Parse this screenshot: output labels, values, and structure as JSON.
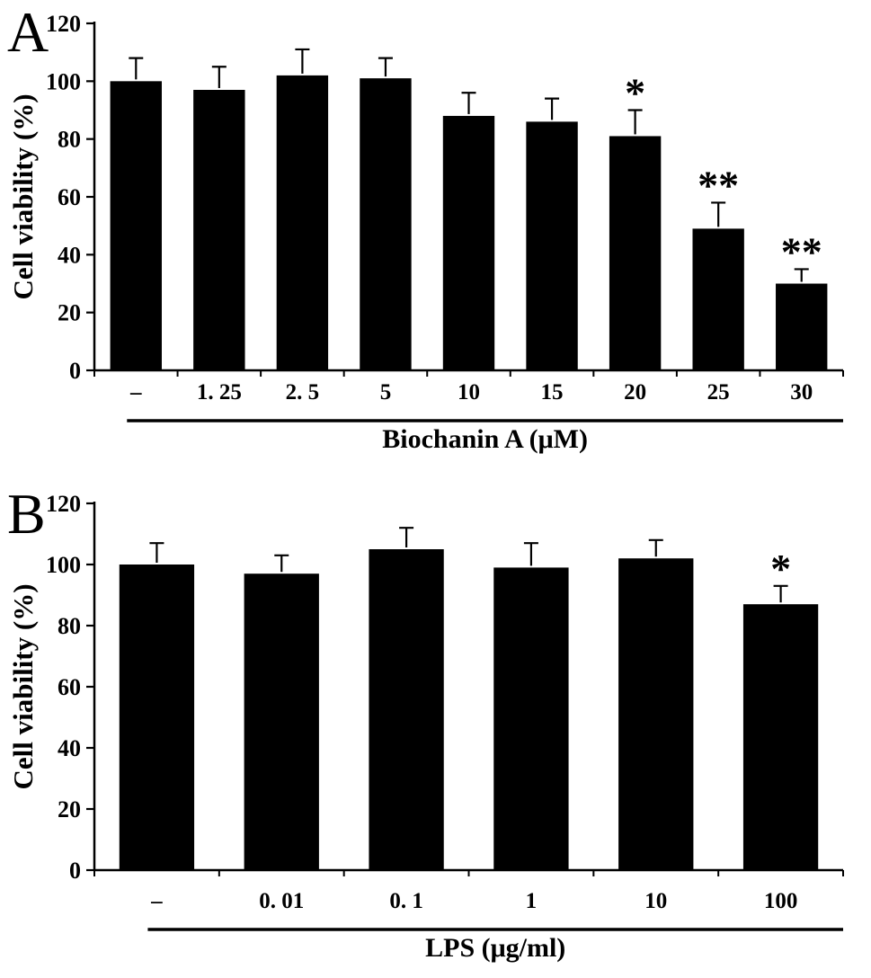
{
  "figure": {
    "background": "#ffffff",
    "bar_color": "#000000",
    "axis_color": "#000000",
    "text_color": "#000000"
  },
  "chart_data": [
    {
      "type": "bar",
      "panel_label": "A",
      "title": "",
      "ylabel": "Cell viability (%)",
      "xlabel": "Biochanin A (μM)",
      "ylim": [
        0,
        120
      ],
      "yticks": [
        0,
        20,
        40,
        60,
        80,
        100,
        120
      ],
      "categories": [
        "–",
        "1. 25",
        "2. 5",
        "5",
        "10",
        "15",
        "20",
        "25",
        "30"
      ],
      "values": [
        100,
        97,
        102,
        101,
        88,
        86,
        81,
        49,
        30
      ],
      "errors": [
        8,
        8,
        9,
        7,
        8,
        8,
        9,
        9,
        5
      ],
      "annotations": [
        "",
        "",
        "",
        "",
        "",
        "",
        "*",
        "**",
        "**"
      ],
      "grid": false,
      "legend_position": "none",
      "bar_color": "#000000"
    },
    {
      "type": "bar",
      "panel_label": "B",
      "title": "",
      "ylabel": "Cell viability (%)",
      "xlabel": "LPS (μg/ml)",
      "ylim": [
        0,
        120
      ],
      "yticks": [
        0,
        20,
        40,
        60,
        80,
        100,
        120
      ],
      "categories": [
        "–",
        "0. 01",
        "0. 1",
        "1",
        "10",
        "100"
      ],
      "values": [
        100,
        97,
        105,
        99,
        102,
        87
      ],
      "errors": [
        7,
        6,
        7,
        8,
        6,
        6
      ],
      "annotations": [
        "",
        "",
        "",
        "",
        "",
        "*"
      ],
      "grid": false,
      "legend_position": "none",
      "bar_color": "#000000"
    }
  ]
}
